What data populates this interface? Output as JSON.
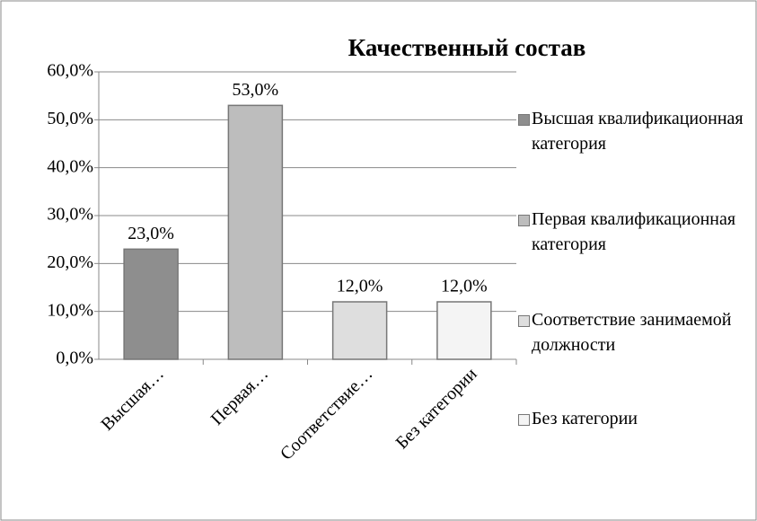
{
  "chart_data": {
    "type": "bar",
    "title": "Качественный состав",
    "categories": [
      "Высшая…",
      "Первая…",
      "Соответствие…",
      "Без категории"
    ],
    "values": [
      23,
      53,
      12,
      12
    ],
    "value_labels": [
      "23,0%",
      "53,0%",
      "12,0%",
      "12,0%"
    ],
    "colors": [
      "#8e8e8e",
      "#bdbdbd",
      "#dedede",
      "#f4f4f4"
    ],
    "legend": [
      "Высшая квалификационная категория",
      "Первая квалификационная категория",
      "Соответствие занимаемой должности",
      "Без категории"
    ],
    "ylim": [
      0,
      60
    ],
    "yticks": [
      {
        "value": 0,
        "label": "0,0%"
      },
      {
        "value": 10,
        "label": "10,0%"
      },
      {
        "value": 20,
        "label": "20,0%"
      },
      {
        "value": 30,
        "label": "30,0%"
      },
      {
        "value": 40,
        "label": "40,0%"
      },
      {
        "value": 50,
        "label": "50,0%"
      },
      {
        "value": 60,
        "label": "60,0%"
      }
    ],
    "grid": true,
    "legend_position": "right"
  }
}
